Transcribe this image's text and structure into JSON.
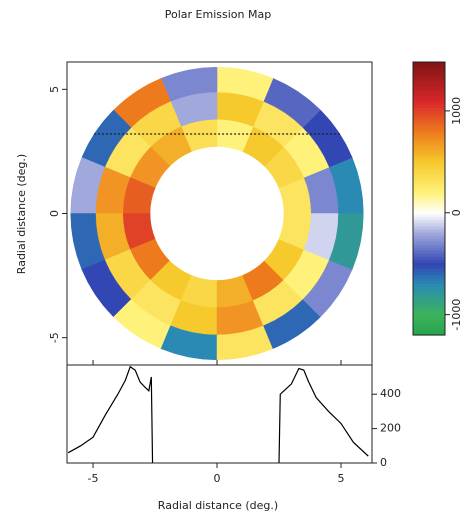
{
  "chart_data": [
    {
      "type": "polar_heatmap",
      "title": "Polar Emission Map",
      "ylabel": "Radial distance (deg.)",
      "xlim": [
        -6.05,
        6.25
      ],
      "ylim": [
        -6.1,
        6.1
      ],
      "yticks": [
        -5,
        0,
        5
      ],
      "r_edges": [
        2.7,
        3.8,
        4.9,
        5.9
      ],
      "theta_edges": [
        0,
        22.5,
        45,
        67.5,
        90,
        112.5,
        135,
        157.5,
        180,
        202.5,
        225,
        247.5,
        270,
        292.5,
        315,
        337.5,
        360
      ],
      "values": [
        [
          300,
          400,
          500,
          200,
          350,
          600,
          700,
          900,
          1000,
          800,
          500,
          400,
          600,
          800,
          500,
          300
        ],
        [
          -300,
          200,
          300,
          500,
          -200,
          400,
          300,
          700,
          600,
          400,
          300,
          500,
          700,
          300,
          200,
          -100
        ],
        [
          -700,
          -500,
          -400,
          200,
          -300,
          800,
          -600,
          -200,
          -600,
          -500,
          200,
          -700,
          300,
          -600,
          -300,
          -800
        ]
      ],
      "reference_y": 3.2,
      "colorbar": {
        "lim": [
          -1200,
          1480
        ],
        "ticks": [
          -1000,
          0,
          1000
        ],
        "stops": [
          [
            -1500,
            "#0a8a3c"
          ],
          [
            -1000,
            "#3cb45a"
          ],
          [
            -700,
            "#2a8ab4"
          ],
          [
            -500,
            "#3246b4"
          ],
          [
            -200,
            "#a0a8dc"
          ],
          [
            0,
            "#ffffff"
          ],
          [
            200,
            "#fff27a"
          ],
          [
            500,
            "#f6c92c"
          ],
          [
            800,
            "#ee7a1e"
          ],
          [
            1100,
            "#d8262a"
          ],
          [
            1500,
            "#7a1414"
          ]
        ]
      }
    },
    {
      "type": "line",
      "xlabel": "Radial distance (deg.)",
      "color": "#000000",
      "xlim": [
        -6.05,
        6.25
      ],
      "ylim": [
        0,
        570
      ],
      "xticks": [
        -5,
        0,
        5
      ],
      "yticks": [
        0,
        200,
        400
      ],
      "x": [
        -6,
        -5.5,
        -5,
        -4.5,
        -4,
        -3.7,
        -3.5,
        -3.3,
        -3.1,
        -2.9,
        -2.75,
        -2.65,
        -2.6,
        0,
        2.5,
        2.55,
        2.7,
        3,
        3.3,
        3.5,
        3.7,
        4,
        4.5,
        5,
        5.5,
        6.1
      ],
      "values": [
        60,
        100,
        150,
        280,
        400,
        480,
        560,
        540,
        470,
        440,
        420,
        500,
        0,
        null,
        0,
        400,
        420,
        460,
        550,
        540,
        470,
        380,
        300,
        230,
        120,
        40
      ]
    }
  ]
}
